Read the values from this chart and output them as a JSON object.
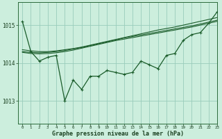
{
  "background_color": "#cceedd",
  "grid_color": "#99ccbb",
  "line_color": "#1a5c2a",
  "xlabel": "Graphe pression niveau de la mer (hPa)",
  "xlim": [
    -0.5,
    23
  ],
  "ylim": [
    1012.4,
    1015.6
  ],
  "yticks": [
    1013,
    1014,
    1015
  ],
  "xticks": [
    0,
    1,
    2,
    3,
    4,
    5,
    6,
    7,
    8,
    9,
    10,
    11,
    12,
    13,
    14,
    15,
    16,
    17,
    18,
    19,
    20,
    21,
    22,
    23
  ],
  "series_main": [
    1015.1,
    1014.3,
    1014.05,
    1014.15,
    1014.2,
    1013.0,
    1013.55,
    1013.3,
    1013.65,
    1013.65,
    1013.8,
    1013.75,
    1013.7,
    1013.75,
    1014.05,
    1013.95,
    1013.85,
    1014.2,
    1014.25,
    1014.6,
    1014.75,
    1014.8,
    1015.05,
    1015.35
  ],
  "series_s1": [
    1014.35,
    1014.32,
    1014.3,
    1014.3,
    1014.32,
    1014.35,
    1014.38,
    1014.42,
    1014.47,
    1014.52,
    1014.57,
    1014.62,
    1014.67,
    1014.72,
    1014.77,
    1014.82,
    1014.87,
    1014.91,
    1014.95,
    1015.0,
    1015.05,
    1015.1,
    1015.15,
    1015.2
  ],
  "series_s2": [
    1014.3,
    1014.28,
    1014.27,
    1014.28,
    1014.3,
    1014.33,
    1014.37,
    1014.41,
    1014.46,
    1014.51,
    1014.56,
    1014.61,
    1014.66,
    1014.7,
    1014.74,
    1014.78,
    1014.82,
    1014.86,
    1014.9,
    1014.94,
    1014.98,
    1015.03,
    1015.08,
    1015.13
  ],
  "series_s3": [
    1014.28,
    1014.25,
    1014.24,
    1014.25,
    1014.27,
    1014.3,
    1014.34,
    1014.39,
    1014.44,
    1014.49,
    1014.54,
    1014.59,
    1014.63,
    1014.67,
    1014.71,
    1014.75,
    1014.79,
    1014.83,
    1014.87,
    1014.91,
    1014.95,
    1015.0,
    1015.05,
    1015.1
  ]
}
